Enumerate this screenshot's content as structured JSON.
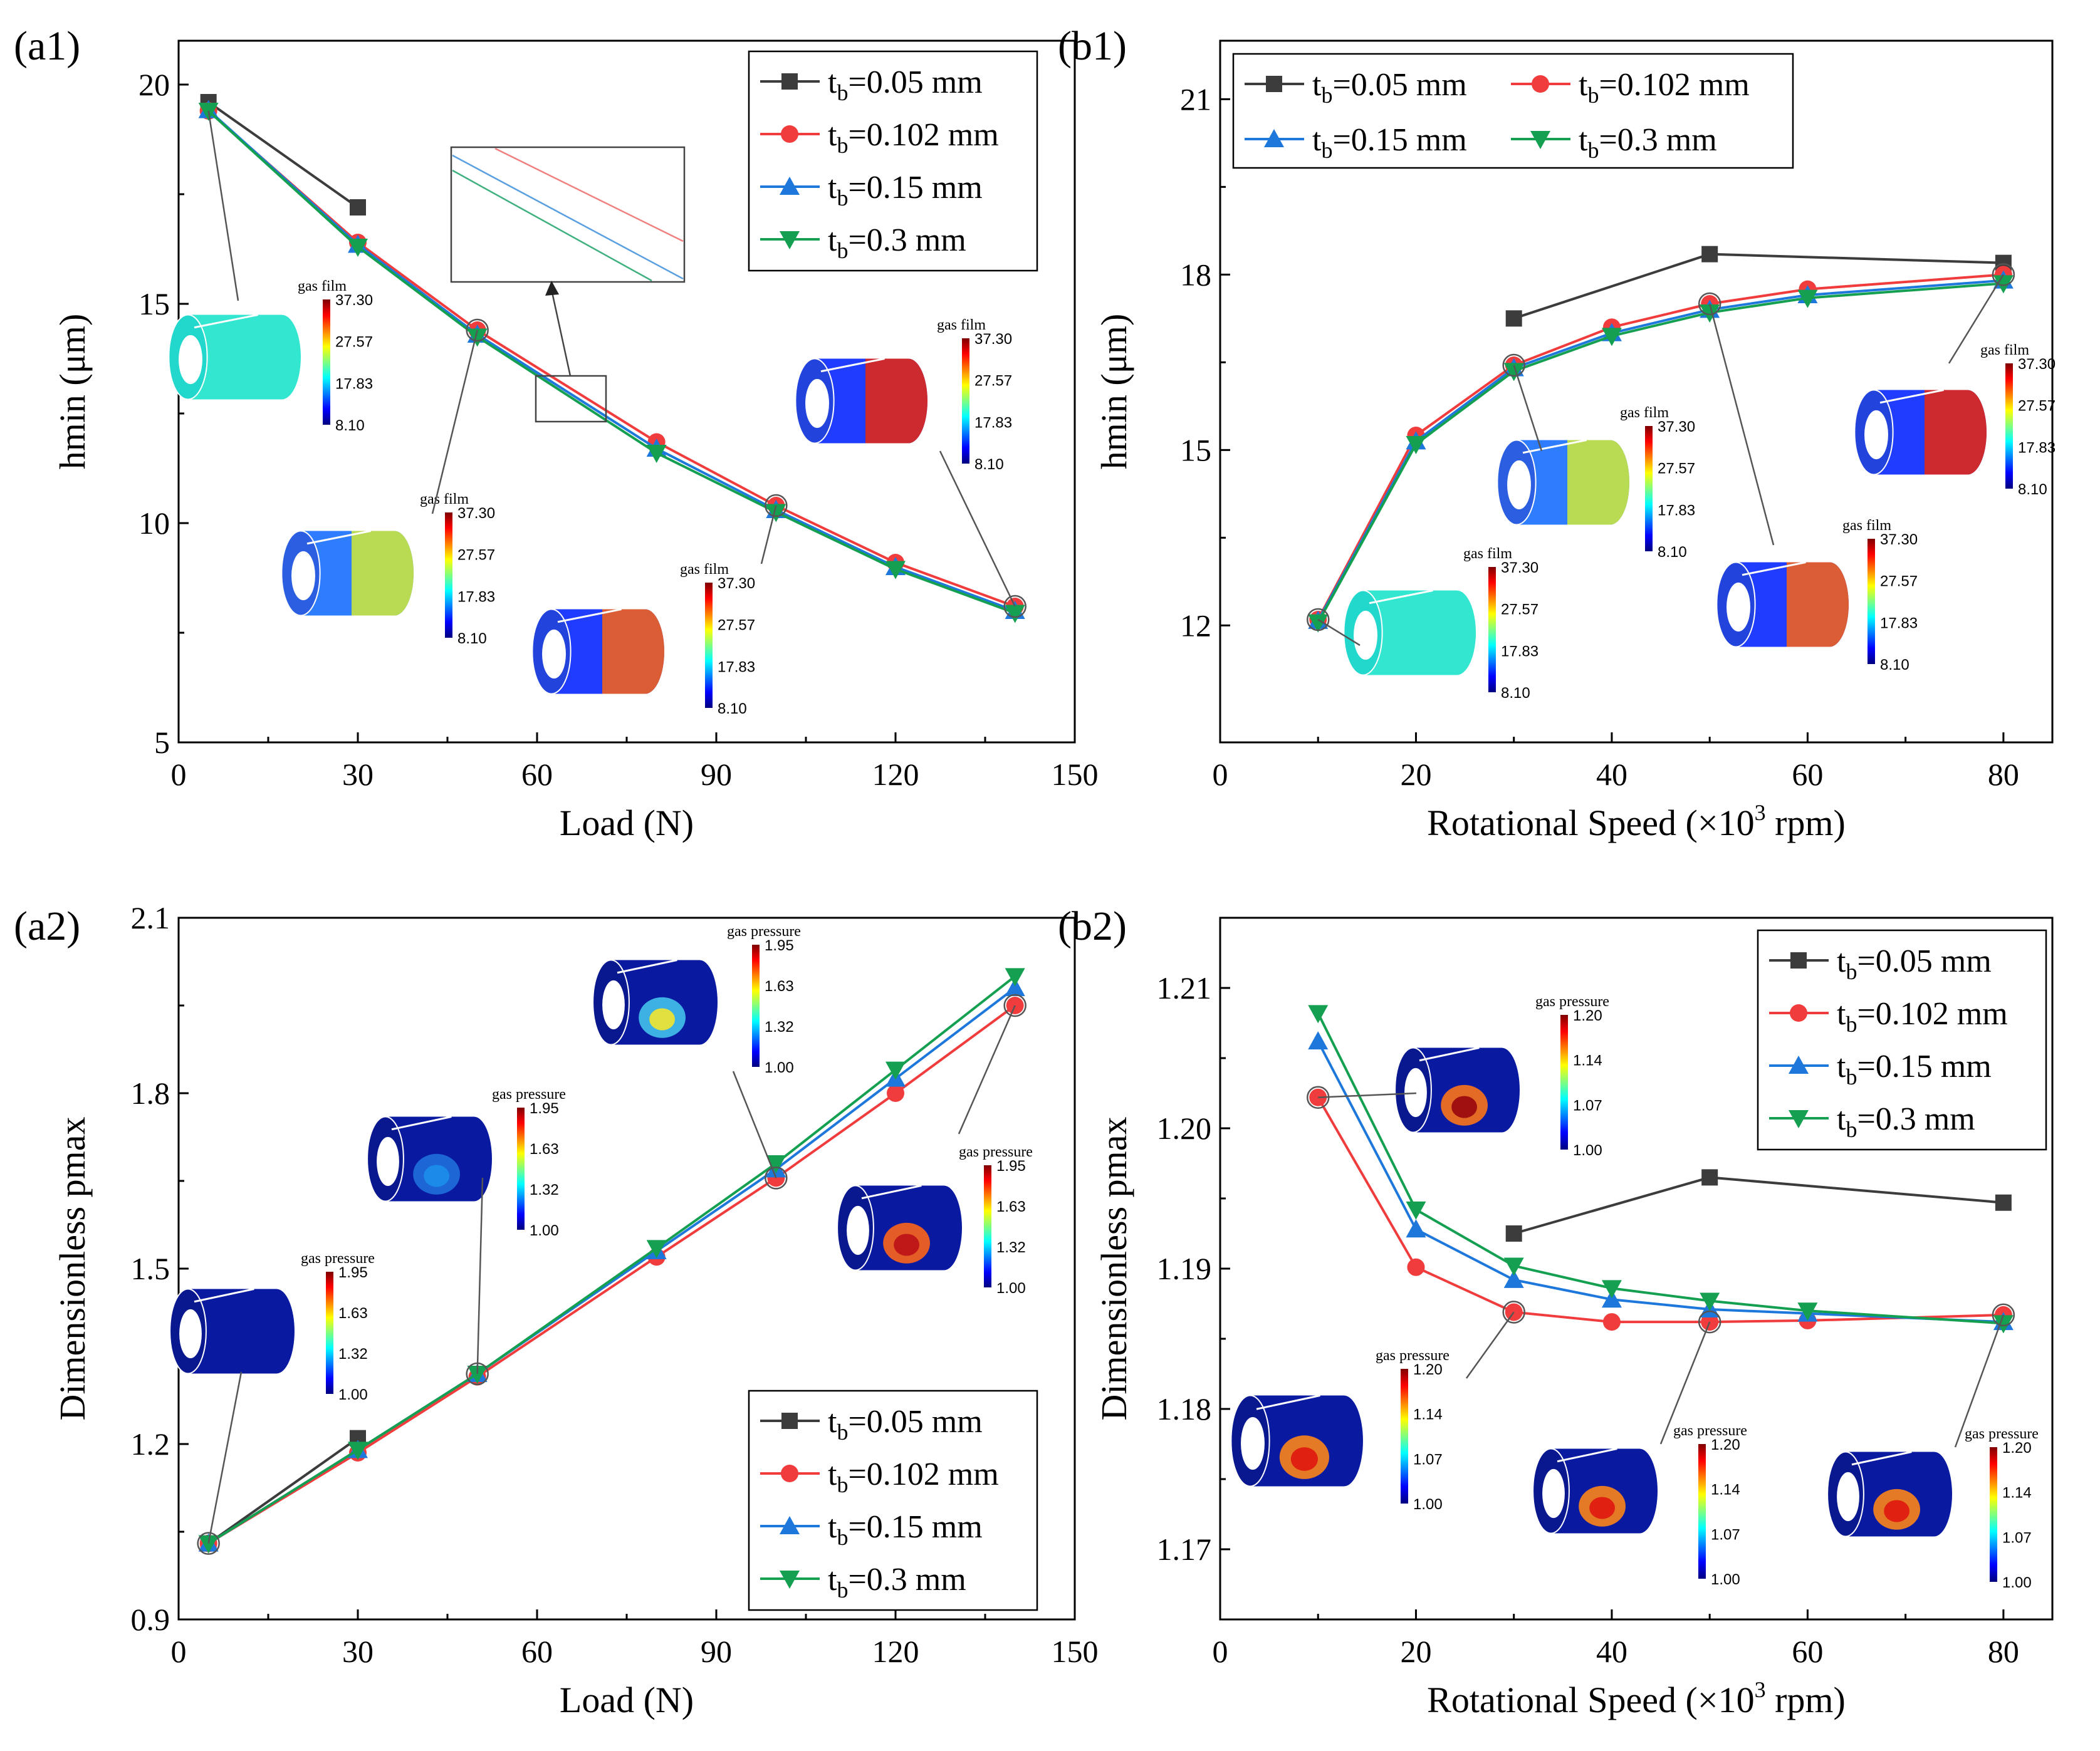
{
  "chart_data": [
    {
      "id": "a1",
      "panel_label": "(a1)",
      "type": "line",
      "xlabel": "Load (N)",
      "ylabel": "hmin (μm)",
      "xlim": [
        0,
        150
      ],
      "ylim": [
        5,
        21
      ],
      "xticks": [
        0,
        30,
        60,
        90,
        120,
        150
      ],
      "yticks": [
        5,
        10,
        15,
        20
      ],
      "legend_position": "top-right",
      "series": [
        {
          "name": "tb=0.05 mm",
          "sub": "b",
          "pre": "t",
          "post": "=0.05 mm",
          "color": "#3c3c3c",
          "marker": "square",
          "x": [
            5,
            30
          ],
          "y": [
            19.6,
            17.2
          ]
        },
        {
          "name": "tb=0.102 mm",
          "sub": "b",
          "pre": "t",
          "post": "=0.102 mm",
          "color": "#f03c3c",
          "marker": "circle",
          "x": [
            5,
            30,
            50,
            80,
            100,
            120,
            140
          ],
          "y": [
            19.4,
            16.4,
            14.4,
            11.85,
            10.4,
            9.1,
            8.1
          ]
        },
        {
          "name": "tb=0.15 mm",
          "sub": "b",
          "pre": "t",
          "post": "=0.15 mm",
          "color": "#1e78dc",
          "marker": "triangle-up",
          "x": [
            5,
            30,
            50,
            80,
            100,
            120,
            140
          ],
          "y": [
            19.42,
            16.35,
            14.3,
            11.7,
            10.3,
            9.0,
            8.0
          ]
        },
        {
          "name": "tb=0.3 mm",
          "sub": "b",
          "pre": "t",
          "post": "=0.3 mm",
          "color": "#14a050",
          "marker": "triangle-down",
          "x": [
            5,
            30,
            50,
            80,
            100,
            120,
            140
          ],
          "y": [
            19.4,
            16.3,
            14.25,
            11.6,
            10.25,
            8.95,
            7.95
          ]
        }
      ]
    },
    {
      "id": "b1",
      "panel_label": "(b1)",
      "type": "line",
      "xlabel": "Rotational Speed (×10",
      "xlabel_sup": "3",
      "xlabel_tail": " rpm)",
      "ylabel": "hmin (μm)",
      "xlim": [
        0,
        85
      ],
      "ylim": [
        10,
        22
      ],
      "xticks": [
        0,
        20,
        40,
        60,
        80
      ],
      "yticks": [
        12,
        15,
        18,
        21
      ],
      "legend_position": "top-left",
      "series": [
        {
          "name": "tb=0.05 mm",
          "sub": "b",
          "pre": "t",
          "post": "=0.05 mm",
          "color": "#3c3c3c",
          "marker": "square",
          "x": [
            30,
            50,
            80
          ],
          "y": [
            17.25,
            18.35,
            18.2
          ]
        },
        {
          "name": "tb=0.102 mm",
          "sub": "b",
          "pre": "t",
          "post": "=0.102 mm",
          "color": "#f03c3c",
          "marker": "circle",
          "x": [
            10,
            20,
            30,
            40,
            50,
            60,
            80
          ],
          "y": [
            12.1,
            15.25,
            16.45,
            17.1,
            17.5,
            17.75,
            18.0
          ]
        },
        {
          "name": "tb=0.15 mm",
          "sub": "b",
          "pre": "t",
          "post": "=0.15 mm",
          "color": "#1e78dc",
          "marker": "triangle-up",
          "x": [
            10,
            20,
            30,
            40,
            50,
            60,
            80
          ],
          "y": [
            12.08,
            15.15,
            16.4,
            17.0,
            17.4,
            17.65,
            17.9
          ]
        },
        {
          "name": "tb=0.3 mm",
          "sub": "b",
          "pre": "t",
          "post": "=0.3 mm",
          "color": "#14a050",
          "marker": "triangle-down",
          "x": [
            10,
            20,
            30,
            40,
            50,
            60,
            80
          ],
          "y": [
            12.05,
            15.1,
            16.35,
            16.95,
            17.35,
            17.6,
            17.85
          ]
        }
      ]
    },
    {
      "id": "a2",
      "panel_label": "(a2)",
      "type": "line",
      "xlabel": "Load (N)",
      "ylabel": "Dimensionless pmax",
      "xlim": [
        0,
        150
      ],
      "ylim": [
        0.9,
        2.1
      ],
      "xticks": [
        0,
        30,
        60,
        90,
        120,
        150
      ],
      "yticks": [
        0.9,
        1.2,
        1.5,
        1.8,
        2.1
      ],
      "legend_position": "bottom-right",
      "series": [
        {
          "name": "tb=0.05 mm",
          "sub": "b",
          "pre": "t",
          "post": "=0.05 mm",
          "color": "#3c3c3c",
          "marker": "square",
          "x": [
            5,
            30
          ],
          "y": [
            1.03,
            1.21
          ]
        },
        {
          "name": "tb=0.102 mm",
          "sub": "b",
          "pre": "t",
          "post": "=0.102 mm",
          "color": "#f03c3c",
          "marker": "circle",
          "x": [
            5,
            30,
            50,
            80,
            100,
            120,
            140
          ],
          "y": [
            1.03,
            1.185,
            1.315,
            1.52,
            1.655,
            1.8,
            1.95
          ]
        },
        {
          "name": "tb=0.15 mm",
          "sub": "b",
          "pre": "t",
          "post": "=0.15 mm",
          "color": "#1e78dc",
          "marker": "triangle-up",
          "x": [
            5,
            30,
            50,
            80,
            100,
            120,
            140
          ],
          "y": [
            1.03,
            1.19,
            1.32,
            1.53,
            1.67,
            1.825,
            1.98
          ]
        },
        {
          "name": "tb=0.3 mm",
          "sub": "b",
          "pre": "t",
          "post": "=0.3 mm",
          "color": "#14a050",
          "marker": "triangle-down",
          "x": [
            5,
            30,
            50,
            80,
            100,
            120,
            140
          ],
          "y": [
            1.03,
            1.19,
            1.32,
            1.535,
            1.68,
            1.84,
            2.0
          ]
        }
      ]
    },
    {
      "id": "b2",
      "panel_label": "(b2)",
      "type": "line",
      "xlabel": "Rotational Speed (×10",
      "xlabel_sup": "3",
      "xlabel_tail": " rpm)",
      "ylabel": "Dimensionless pmax",
      "xlim": [
        0,
        85
      ],
      "ylim": [
        1.165,
        1.215
      ],
      "xticks": [
        0,
        20,
        40,
        60,
        80
      ],
      "yticks": [
        1.17,
        1.18,
        1.19,
        1.2,
        1.21
      ],
      "ytick_labels": [
        "1.17",
        "1.18",
        "1.19",
        "1.20",
        "1.21"
      ],
      "legend_position": "top-right",
      "series": [
        {
          "name": "tb=0.05 mm",
          "sub": "b",
          "pre": "t",
          "post": "=0.05 mm",
          "color": "#3c3c3c",
          "marker": "square",
          "x": [
            30,
            50,
            80
          ],
          "y": [
            1.1925,
            1.1965,
            1.1947
          ]
        },
        {
          "name": "tb=0.102 mm",
          "sub": "b",
          "pre": "t",
          "post": "=0.102 mm",
          "color": "#f03c3c",
          "marker": "circle",
          "x": [
            10,
            20,
            30,
            40,
            50,
            60,
            80
          ],
          "y": [
            1.2022,
            1.1901,
            1.1869,
            1.1862,
            1.1862,
            1.1863,
            1.1867
          ]
        },
        {
          "name": "tb=0.15 mm",
          "sub": "b",
          "pre": "t",
          "post": "=0.15 mm",
          "color": "#1e78dc",
          "marker": "triangle-up",
          "x": [
            10,
            20,
            30,
            40,
            50,
            60,
            80
          ],
          "y": [
            1.2062,
            1.1928,
            1.1892,
            1.1878,
            1.1871,
            1.1868,
            1.1862
          ]
        },
        {
          "name": "tb=0.3 mm",
          "sub": "b",
          "pre": "t",
          "post": "=0.3 mm",
          "color": "#14a050",
          "marker": "triangle-down",
          "x": [
            10,
            20,
            30,
            40,
            50,
            60,
            80
          ],
          "y": [
            1.2082,
            1.1942,
            1.1902,
            1.1886,
            1.1877,
            1.187,
            1.1861
          ]
        }
      ]
    }
  ],
  "insets": {
    "film": {
      "title": "gas film",
      "ticks": [
        "37.30",
        "27.57",
        "17.83",
        "8.10"
      ]
    },
    "pressure_load": {
      "title": "gas pressure",
      "ticks": [
        "1.95",
        "1.63",
        "1.32",
        "1.00"
      ]
    },
    "pressure_speed": {
      "title": "gas pressure",
      "ticks": [
        "1.20",
        "1.14",
        "1.07",
        "1.00"
      ]
    }
  },
  "colors": {
    "axis": "#000000",
    "leader": "#555555"
  }
}
